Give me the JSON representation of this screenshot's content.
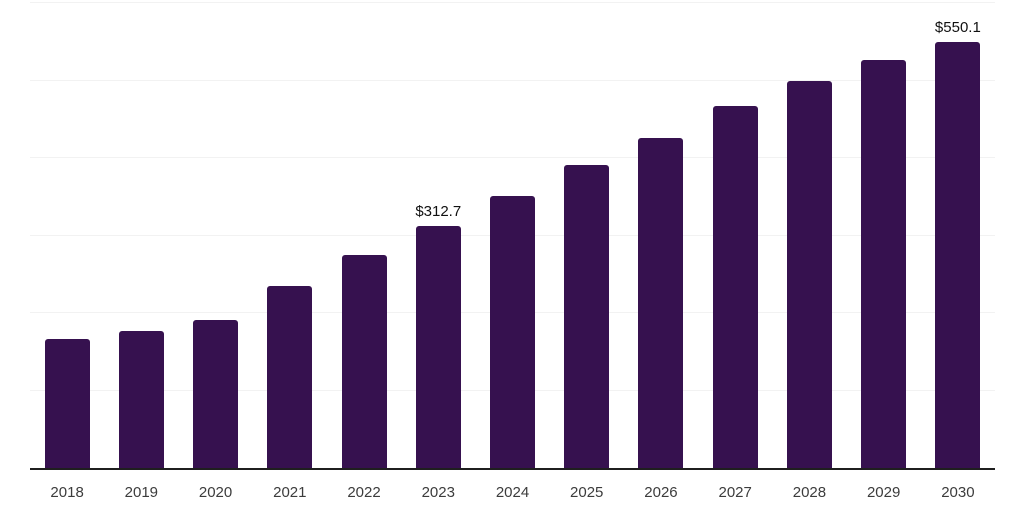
{
  "chart_data": {
    "type": "bar",
    "title": "",
    "xlabel": "",
    "ylabel": "",
    "categories": [
      "2018",
      "2019",
      "2020",
      "2021",
      "2022",
      "2023",
      "2024",
      "2025",
      "2026",
      "2027",
      "2028",
      "2029",
      "2030"
    ],
    "values": [
      166.5,
      176.9,
      190.9,
      235.2,
      274.6,
      312.7,
      350.8,
      391.3,
      425.7,
      467.6,
      499.3,
      526.0,
      550.1
    ],
    "data_labels": [
      "",
      "",
      "",
      "",
      "",
      "$312.7",
      "",
      "",
      "",
      "",
      "",
      "",
      "$550.1"
    ],
    "ylim": [
      0,
      600
    ],
    "grid_step": 100,
    "grid": true,
    "legend_position": "none",
    "y_axis_labels_visible": false,
    "colors": {
      "bar": "#36114F",
      "gridline": "#F2F2F2",
      "axis_line": "#1F1F1F",
      "tick_label": "#3C3C3C",
      "data_label": "#111111",
      "background": "#FFFFFF"
    }
  }
}
